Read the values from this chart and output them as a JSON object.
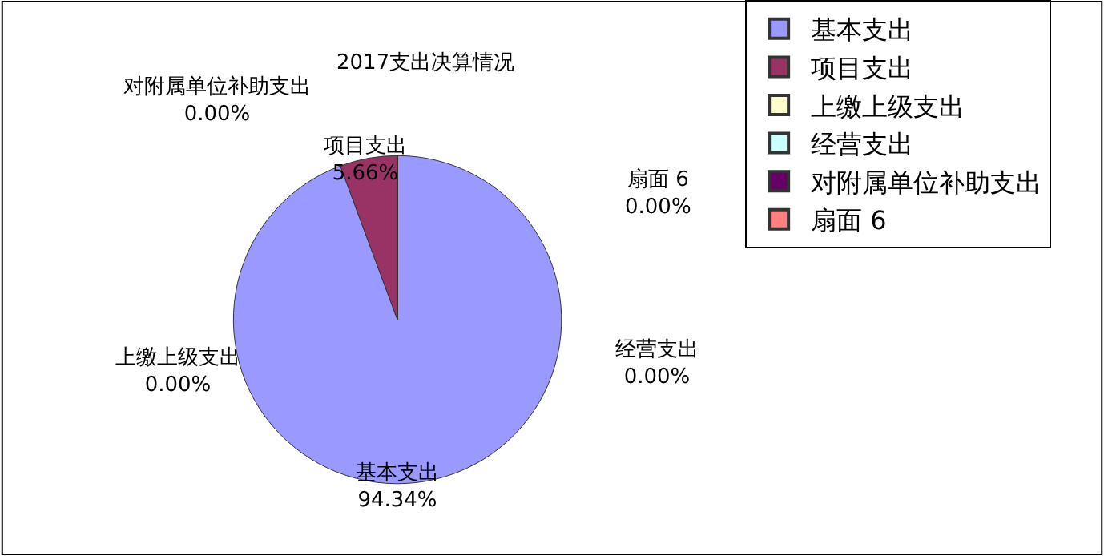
{
  "chart_data": {
    "type": "pie",
    "title": "2017支出决算情况",
    "categories": [
      "基本支出",
      "项目支出",
      "上缴上级支出",
      "经营支出",
      "对附属单位补助支出",
      "扇面 6"
    ],
    "values": [
      94.34,
      5.66,
      0,
      0,
      0,
      0
    ],
    "colors": [
      "#9999ff",
      "#993366",
      "#ffffcc",
      "#ccffff",
      "#660066",
      "#ff8080"
    ],
    "value_labels": [
      "94.34%",
      "5.66%",
      "0.00%",
      "0.00%",
      "0.00%",
      "0.00%"
    ],
    "legend": "right"
  }
}
